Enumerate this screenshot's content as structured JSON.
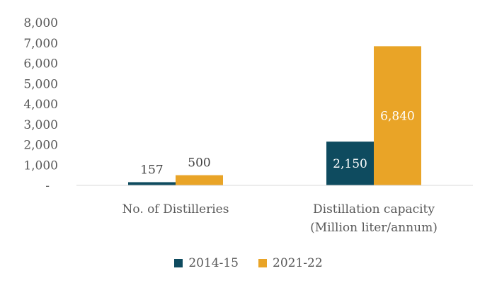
{
  "chart_data": {
    "type": "bar",
    "categories": [
      "No. of Distilleries",
      "Distillation capacity\n(Million liter/annum)"
    ],
    "series": [
      {
        "name": "2014-15",
        "values": [
          157,
          2150
        ],
        "color": "#0E4B5F"
      },
      {
        "name": "2021-22",
        "values": [
          500,
          6840
        ],
        "color": "#E9A427"
      }
    ],
    "data_labels": [
      [
        "157",
        "2,150"
      ],
      [
        "500",
        "6,840"
      ]
    ],
    "ylim": [
      0,
      8000
    ],
    "yticks": [
      0,
      1000,
      2000,
      3000,
      4000,
      5000,
      6000,
      7000,
      8000
    ],
    "ytick_labels": [
      "-",
      "1,000",
      "2,000",
      "3,000",
      "4,000",
      "5,000",
      "6,000",
      "7,000",
      "8,000"
    ],
    "grid": false,
    "legend_position": "bottom"
  }
}
